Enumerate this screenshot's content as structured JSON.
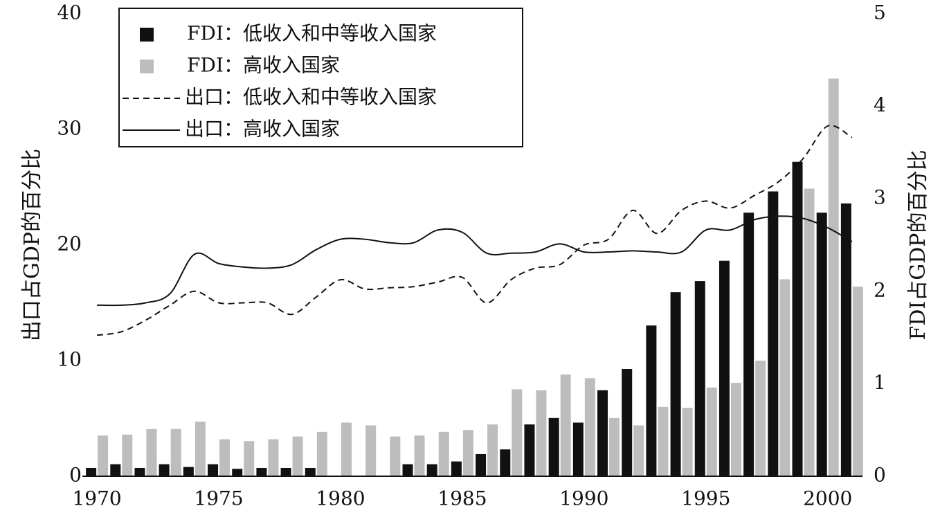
{
  "chart_data": {
    "type": "combo",
    "y_label": "出口占GDP的百分比",
    "y2_label": "FDI占GDP的百分比",
    "x": [
      1970,
      1971,
      1972,
      1973,
      1974,
      1975,
      1976,
      1977,
      1978,
      1979,
      1980,
      1981,
      1982,
      1983,
      1984,
      1985,
      1986,
      1987,
      1988,
      1989,
      1990,
      1991,
      1992,
      1993,
      1994,
      1995,
      1996,
      1997,
      1998,
      1999,
      2000,
      2001
    ],
    "xlim": [
      1969.4,
      2001.6
    ],
    "xticks": [
      1970,
      1975,
      1980,
      1985,
      1990,
      1995,
      2000
    ],
    "ylim": [
      0,
      40
    ],
    "yticks": [
      0,
      10,
      20,
      30,
      40
    ],
    "y2lim": [
      0,
      5
    ],
    "y2ticks": [
      0,
      1,
      2,
      3,
      4,
      5
    ],
    "legend": "upper left",
    "series": [
      {
        "name": "FDI：低收入和中等收入国家",
        "type": "bar",
        "axis": "y2",
        "color": "#111111",
        "values": [
          0.09,
          0.13,
          0.09,
          0.13,
          0.1,
          0.13,
          0.08,
          0.09,
          0.09,
          0.09,
          null,
          null,
          null,
          0.13,
          0.13,
          0.16,
          0.24,
          0.29,
          0.56,
          0.63,
          0.58,
          0.93,
          1.16,
          1.63,
          1.99,
          2.11,
          2.33,
          2.85,
          3.08,
          3.4,
          2.85,
          2.95
        ]
      },
      {
        "name": "FDI：高收入国家",
        "type": "bar",
        "axis": "y2",
        "color": "#bdbdbd",
        "values": [
          0.44,
          0.45,
          0.51,
          0.51,
          0.59,
          0.4,
          0.38,
          0.4,
          0.43,
          0.48,
          0.58,
          0.55,
          0.43,
          0.44,
          0.48,
          0.5,
          0.56,
          0.94,
          0.93,
          1.1,
          1.06,
          0.63,
          0.55,
          0.75,
          0.74,
          0.96,
          1.01,
          1.25,
          2.13,
          3.11,
          4.3,
          2.05
        ]
      },
      {
        "name": "出口：低收入和中等收入国家",
        "type": "line",
        "dash": true,
        "color": "#111111",
        "values": [
          12.2,
          12.5,
          13.5,
          14.8,
          16.0,
          15.0,
          15.0,
          15.0,
          14.0,
          15.5,
          17.0,
          16.2,
          16.3,
          16.4,
          16.8,
          17.2,
          15.0,
          17.0,
          18.0,
          18.3,
          20.0,
          20.5,
          23.0,
          21.0,
          23.0,
          23.8,
          23.2,
          24.3,
          25.5,
          27.5,
          30.3,
          29.3
        ]
      },
      {
        "name": "出口：高收入国家",
        "type": "line",
        "dash": false,
        "color": "#111111",
        "values": [
          14.8,
          14.8,
          15.0,
          15.8,
          19.2,
          18.4,
          18.1,
          18.0,
          18.3,
          19.6,
          20.5,
          20.5,
          20.2,
          20.2,
          21.3,
          21.1,
          19.3,
          19.3,
          19.4,
          20.1,
          19.4,
          19.4,
          19.5,
          19.4,
          19.4,
          21.3,
          21.3,
          22.2,
          22.5,
          22.3,
          21.5,
          20.3
        ]
      }
    ]
  }
}
